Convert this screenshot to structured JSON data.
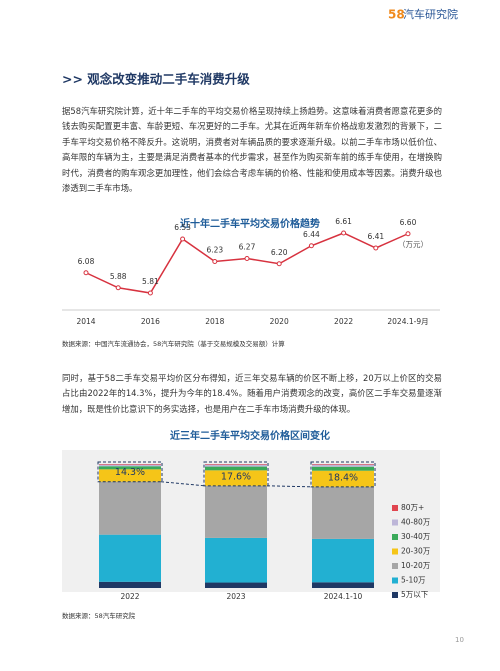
{
  "header": {
    "logo_number": "58",
    "logo_text": "汽车研究院"
  },
  "section_title": ">> 观念改变推动二手车消费升级",
  "paragraphs": [
    "据58汽车研究院计算，近十年二手车的平均交易价格呈现持续上扬趋势。这意味着消费者愿意花更多的钱去购买配置更丰富、车龄更短、车况更好的二手车。尤其在近两年新车价格战愈发激烈的背景下，二手车平均交易价格不降反升。这说明，消费者对车辆品质的要求逐渐升级。以前二手车市场以低价位、高年限的车辆为主，主要是满足消费者基本的代步需求，甚至作为购买新车前的练手车使用，在增换购时代，消费者的购车观念更加理性，他们会综合考虑车辆的价格、性能和使用成本等因素。消费升级也渗透到二手车市场。",
    "同时，基于58二手车交易平均价区分布得知，近三年交易车辆的价区不断上移，20万以上价区的交易占比由2022年的14.3%，提升为今年的18.4%。随着用户消费观念的改变，高价区二手车交易量逐渐增加，既是性价比意识下的务实选择，也是用户在二手车市场消费升级的体现。"
  ],
  "chart_data": [
    {
      "type": "line",
      "title": "近十年二手车平均交易价格趋势",
      "unit": "（万元）",
      "categories": [
        "2014",
        null,
        "2016",
        null,
        "2018",
        null,
        "2020",
        null,
        "2022",
        null,
        "2024.1-9月"
      ],
      "values": [
        6.08,
        5.88,
        5.81,
        6.53,
        6.23,
        6.27,
        6.2,
        6.44,
        6.61,
        6.41,
        6.6
      ],
      "value_labels": [
        "6.08",
        "5.88",
        "5.81",
        "6.53",
        "6.23",
        "6.27",
        "6.20",
        "6.44",
        "6.61",
        "6.41",
        "6.60"
      ],
      "color": "#d7323f",
      "source": "数据来源：中国汽车流通协会，58汽车研究院（基于交易规模及交易额）计算"
    },
    {
      "type": "stacked_bar",
      "title": "近三年二手车平均交易价格区间变化",
      "categories": [
        "2022",
        "2023",
        "2024.1-10"
      ],
      "series": [
        {
          "name": "5万以下",
          "color": "#1f3864",
          "values": [
            5,
            4.4,
            4.6
          ]
        },
        {
          "name": "5-10万",
          "color": "#22b0d2",
          "values": [
            38,
            36,
            35
          ]
        },
        {
          "name": "10-20万",
          "color": "#a6a6a6",
          "values": [
            42.7,
            42,
            42
          ]
        },
        {
          "name": "20-30万",
          "color": "#f5c518",
          "values": [
            10,
            12.5,
            13
          ]
        },
        {
          "name": "30-40万",
          "color": "#3aaa5a",
          "values": [
            2.5,
            3,
            3.2
          ]
        },
        {
          "name": "40-80万",
          "color": "#bdb6d8",
          "values": [
            1.3,
            1.6,
            1.7
          ]
        },
        {
          "name": "80万+",
          "color": "#e0454f",
          "values": [
            0.5,
            0.5,
            0.5
          ]
        }
      ],
      "annotations": [
        "14.3%",
        "17.6%",
        "18.4%"
      ],
      "source": "数据来源：58汽车研究院"
    }
  ],
  "page_number": "10"
}
